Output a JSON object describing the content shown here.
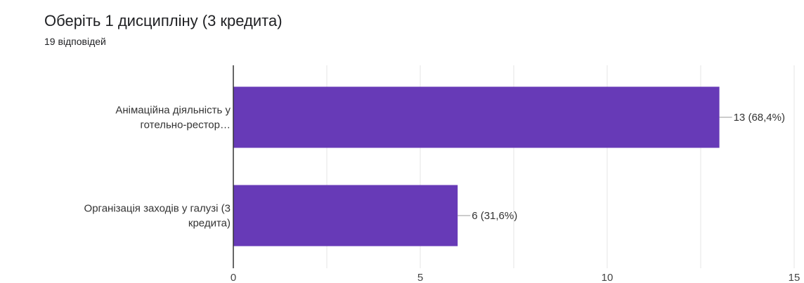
{
  "header": {
    "title": "Оберіть 1 дисципліну (3 кредита)",
    "responses": "19 відповідей"
  },
  "colors": {
    "bar": "#673ab7",
    "axis": "#333333",
    "grid": "#e6e6e6",
    "leader": "#999999"
  },
  "chart_data": {
    "type": "bar",
    "orientation": "horizontal",
    "title": "Оберіть 1 дисципліну (3 кредита)",
    "subtitle": "19 відповідей",
    "categories": [
      [
        "Анімаційна діяльність у",
        "готельно-рестор…"
      ],
      [
        "Організація заходів у галузі (3",
        "кредита)"
      ]
    ],
    "values": [
      13,
      6
    ],
    "data_labels": [
      "13 (68,4%)",
      "6 (31,6%)"
    ],
    "xlim": [
      0,
      15
    ],
    "x_ticks": [
      0,
      5,
      10,
      15
    ],
    "grid": true
  }
}
